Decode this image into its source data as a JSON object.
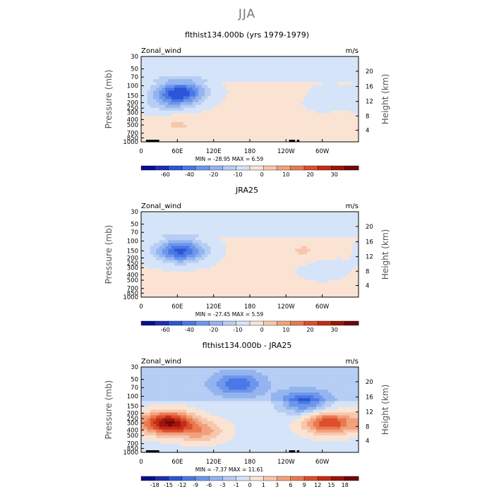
{
  "page_title": "JJA",
  "chart_data": [
    {
      "type": "heatmap",
      "title": "flthist134.000b (yrs 1979-1979)",
      "variable": "Zonal_wind",
      "units": "m/s",
      "ylabel": "Pressure (mb)",
      "ylabel_right": "Height (km)",
      "y_ticks": [
        "30",
        "50",
        "70",
        "100",
        "150",
        "200",
        "250",
        "300",
        "400",
        "500",
        "700",
        "850",
        "1000"
      ],
      "y2_ticks": [
        "20",
        "16",
        "12",
        "8",
        "4"
      ],
      "x_ticks": [
        "0",
        "60E",
        "120E",
        "180",
        "120W",
        "60W"
      ],
      "xlim_deg": [
        0,
        360
      ],
      "min": -28.95,
      "max": 6.59,
      "stats_text": "MIN = -28.95   MAX = 6.59",
      "colorbar_labels": [
        "-60",
        "-40",
        "-20",
        "-10",
        "0",
        "10",
        "20",
        "30"
      ],
      "colorbar_colors": [
        "#08108c",
        "#1b2fb5",
        "#2d55d9",
        "#4a78e6",
        "#6e97eb",
        "#93b4f0",
        "#b6cdf4",
        "#d5e4f8",
        "#fbe3d4",
        "#f7c7ac",
        "#f2a17e",
        "#ea7950",
        "#dc4f2d",
        "#c42c17",
        "#9e150b",
        "#70080a"
      ],
      "features": [
        {
          "lon": 65,
          "p": 130,
          "v": -28
        },
        {
          "lon": 45,
          "p": 200,
          "v": -8
        },
        {
          "lon": 300,
          "p": 160,
          "v": -4
        },
        {
          "lon": 60,
          "p": 500,
          "v": 5
        },
        {
          "lon": 240,
          "p": 130,
          "v": 4
        }
      ]
    },
    {
      "type": "heatmap",
      "title": "JRA25",
      "variable": "Zonal_wind",
      "units": "m/s",
      "ylabel": "Pressure (mb)",
      "ylabel_right": "Height (km)",
      "y_ticks": [
        "30",
        "50",
        "70",
        "100",
        "150",
        "200",
        "250",
        "300",
        "400",
        "500",
        "700",
        "850",
        "1000"
      ],
      "y2_ticks": [
        "20",
        "16",
        "12",
        "8",
        "4"
      ],
      "x_ticks": [
        "0",
        "60E",
        "120E",
        "180",
        "120W",
        "60W"
      ],
      "xlim_deg": [
        0,
        360
      ],
      "min": -27.45,
      "max": 5.59,
      "stats_text": "MIN = -27.45   MAX = 5.59",
      "colorbar_labels": [
        "-60",
        "-40",
        "-20",
        "-10",
        "0",
        "10",
        "20",
        "30"
      ],
      "colorbar_colors": [
        "#08108c",
        "#1b2fb5",
        "#2d55d9",
        "#4a78e6",
        "#6e97eb",
        "#93b4f0",
        "#b6cdf4",
        "#d5e4f8",
        "#fbe3d4",
        "#f7c7ac",
        "#f2a17e",
        "#ea7950",
        "#dc4f2d",
        "#c42c17",
        "#9e150b",
        "#70080a"
      ],
      "features": [
        {
          "lon": 65,
          "p": 150,
          "v": -27
        },
        {
          "lon": 270,
          "p": 150,
          "v": 5
        },
        {
          "lon": 70,
          "p": 650,
          "v": 4
        },
        {
          "lon": 300,
          "p": 300,
          "v": -3
        }
      ]
    },
    {
      "type": "heatmap",
      "title": "flthist134.000b - JRA25",
      "variable": "Zonal_wind",
      "units": "m/s",
      "ylabel": "Pressure (mb)",
      "ylabel_right": "Height (km)",
      "y_ticks": [
        "30",
        "50",
        "70",
        "100",
        "150",
        "200",
        "250",
        "300",
        "400",
        "500",
        "700",
        "850",
        "1000"
      ],
      "y2_ticks": [
        "20",
        "16",
        "12",
        "8",
        "4"
      ],
      "x_ticks": [
        "0",
        "60E",
        "120E",
        "180",
        "120W",
        "60W"
      ],
      "xlim_deg": [
        0,
        360
      ],
      "min": -7.37,
      "max": 11.61,
      "stats_text": "MIN = -7.37   MAX = 11.61",
      "colorbar_labels": [
        "-18",
        "-15",
        "-12",
        "-9",
        "-6",
        "-3",
        "-1",
        "0",
        "1",
        "3",
        "6",
        "9",
        "12",
        "15",
        "18"
      ],
      "colorbar_colors": [
        "#08108c",
        "#1b2fb5",
        "#2d55d9",
        "#4a78e6",
        "#6e97eb",
        "#93b4f0",
        "#b6cdf4",
        "#d5e4f8",
        "#fbe3d4",
        "#f7c7ac",
        "#f2a17e",
        "#ea7950",
        "#dc4f2d",
        "#c42c17",
        "#9e150b",
        "#70080a"
      ],
      "features": [
        {
          "lon": 45,
          "p": 300,
          "v": 11
        },
        {
          "lon": 310,
          "p": 300,
          "v": 8
        },
        {
          "lon": 270,
          "p": 130,
          "v": -6
        },
        {
          "lon": 160,
          "p": 60,
          "v": -5
        },
        {
          "lon": 100,
          "p": 420,
          "v": 4
        }
      ]
    }
  ]
}
